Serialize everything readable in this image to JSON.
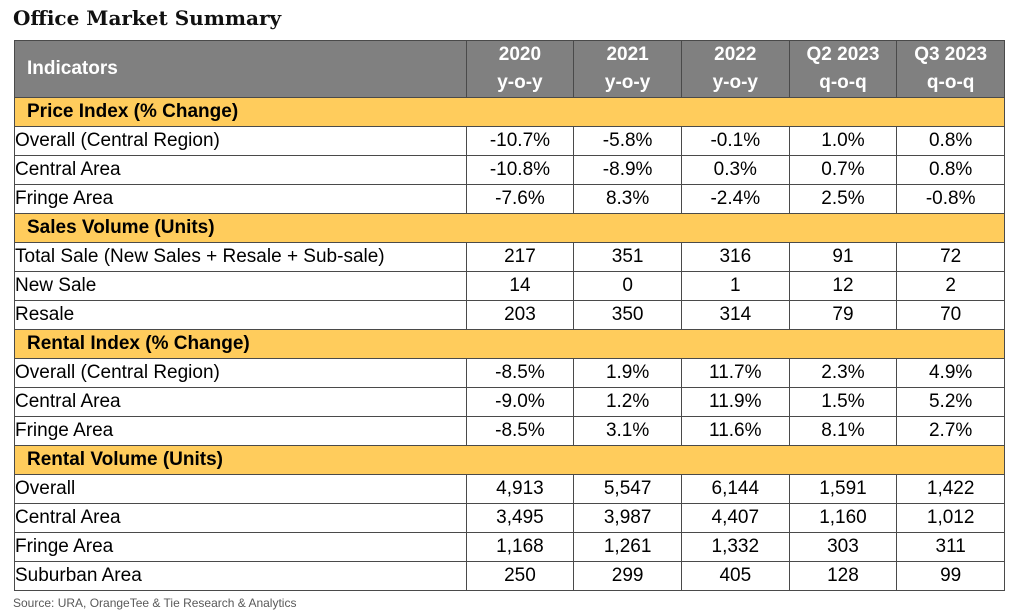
{
  "title": "Office Market Summary",
  "source": "Source: URA, OrangeTee & Tie Research & Analytics",
  "colors": {
    "header_bg": "#808080",
    "header_text": "#ffffff",
    "section_bg": "#ffcc5c",
    "border": "#4a4a4a"
  },
  "chart_data": {
    "type": "table",
    "title": "Office Market Summary",
    "header": {
      "indicator": "Indicators",
      "columns": [
        {
          "top": "2020",
          "bottom": "y-o-y"
        },
        {
          "top": "2021",
          "bottom": "y-o-y"
        },
        {
          "top": "2022",
          "bottom": "y-o-y"
        },
        {
          "top": "Q2 2023",
          "bottom": "q-o-q"
        },
        {
          "top": "Q3 2023",
          "bottom": "q-o-q"
        }
      ]
    },
    "sections": [
      {
        "name": "Price Index (% Change)",
        "rows": [
          {
            "label": "Overall (Central Region)",
            "values": [
              "-10.7%",
              "-5.8%",
              "-0.1%",
              "1.0%",
              "0.8%"
            ]
          },
          {
            "label": "Central Area",
            "values": [
              "-10.8%",
              "-8.9%",
              "0.3%",
              "0.7%",
              "0.8%"
            ]
          },
          {
            "label": "Fringe Area",
            "values": [
              "-7.6%",
              "8.3%",
              "-2.4%",
              "2.5%",
              "-0.8%"
            ]
          }
        ]
      },
      {
        "name": "Sales Volume (Units)",
        "rows": [
          {
            "label": "Total Sale (New Sales + Resale + Sub-sale)",
            "values": [
              "217",
              "351",
              "316",
              "91",
              "72"
            ]
          },
          {
            "label": "New Sale",
            "values": [
              "14",
              "0",
              "1",
              "12",
              "2"
            ]
          },
          {
            "label": "Resale",
            "values": [
              "203",
              "350",
              "314",
              "79",
              "70"
            ]
          }
        ]
      },
      {
        "name": "Rental Index (% Change)",
        "rows": [
          {
            "label": "Overall (Central Region)",
            "values": [
              "-8.5%",
              "1.9%",
              "11.7%",
              "2.3%",
              "4.9%"
            ]
          },
          {
            "label": "Central Area",
            "values": [
              "-9.0%",
              "1.2%",
              "11.9%",
              "1.5%",
              "5.2%"
            ]
          },
          {
            "label": "Fringe Area",
            "values": [
              "-8.5%",
              "3.1%",
              "11.6%",
              "8.1%",
              "2.7%"
            ]
          }
        ]
      },
      {
        "name": "Rental Volume (Units)",
        "rows": [
          {
            "label": "Overall",
            "values": [
              "4,913",
              "5,547",
              "6,144",
              "1,591",
              "1,422"
            ]
          },
          {
            "label": "Central Area",
            "values": [
              "3,495",
              "3,987",
              "4,407",
              "1,160",
              "1,012"
            ]
          },
          {
            "label": "Fringe Area",
            "values": [
              "1,168",
              "1,261",
              "1,332",
              "303",
              "311"
            ]
          },
          {
            "label": "Suburban Area",
            "values": [
              "250",
              "299",
              "405",
              "128",
              "99"
            ]
          }
        ]
      }
    ]
  }
}
